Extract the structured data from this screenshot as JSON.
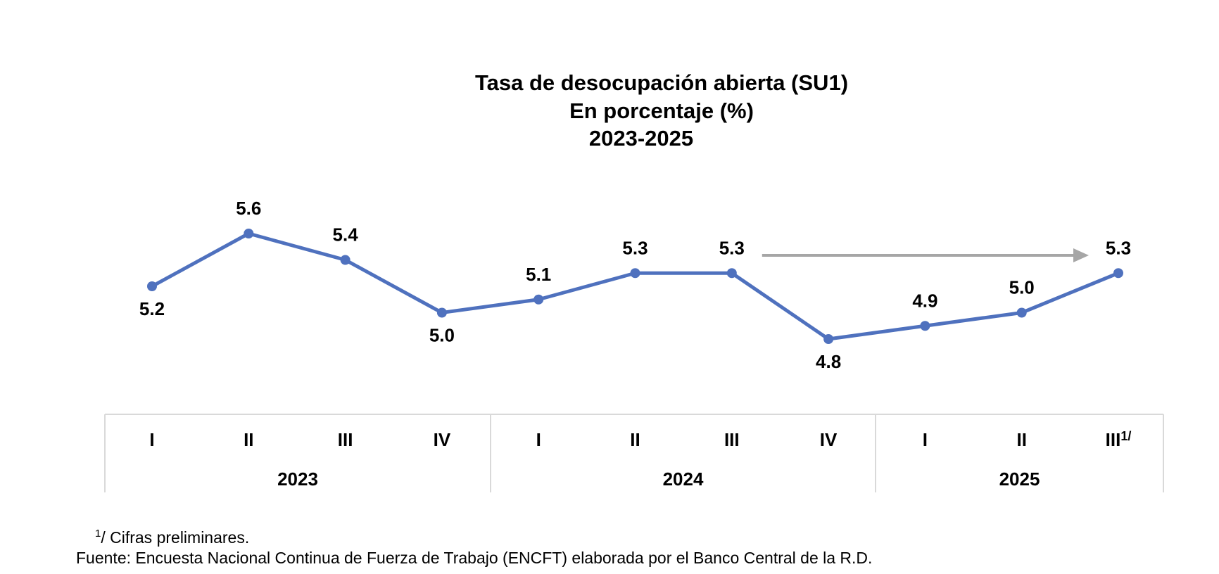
{
  "chart_data": {
    "type": "line",
    "title_lines": [
      "Tasa de desocupación abierta (SU1)",
      "En porcentaje (%)",
      "2023-2025"
    ],
    "categories": [
      "I",
      "II",
      "III",
      "IV",
      "I",
      "II",
      "III",
      "IV",
      "I",
      "II",
      "III"
    ],
    "category_suffix_last": "1/",
    "groups": [
      {
        "label": "2023",
        "count": 4
      },
      {
        "label": "2024",
        "count": 4
      },
      {
        "label": "2025",
        "count": 3
      }
    ],
    "series": [
      {
        "values": [
          5.2,
          5.6,
          5.4,
          5.0,
          5.1,
          5.3,
          5.3,
          4.8,
          4.9,
          5.0,
          5.3
        ],
        "labels": [
          "5.2",
          "5.6",
          "5.4",
          "5.0",
          "5.1",
          "5.3",
          "5.3",
          "4.8",
          "4.9",
          "5.0",
          "5.3"
        ],
        "label_position": [
          "below",
          "above",
          "above",
          "below",
          "above",
          "above",
          "above",
          "below",
          "above",
          "above",
          "above"
        ],
        "color": "#4F71BE"
      }
    ],
    "annotation": {
      "type": "arrow",
      "from_category_index": 6,
      "to_category_index": 10,
      "color": "#A6A6A6"
    },
    "axis_frame_color": "#D9D9D9",
    "grid": false,
    "legend": "none"
  },
  "footnotes": {
    "note_marker": "1",
    "note_text": "/ Cifras preliminares.",
    "source": "Fuente: Encuesta Nacional Continua de Fuerza de Trabajo (ENCFT) elaborada por el Banco Central de la R.D."
  }
}
